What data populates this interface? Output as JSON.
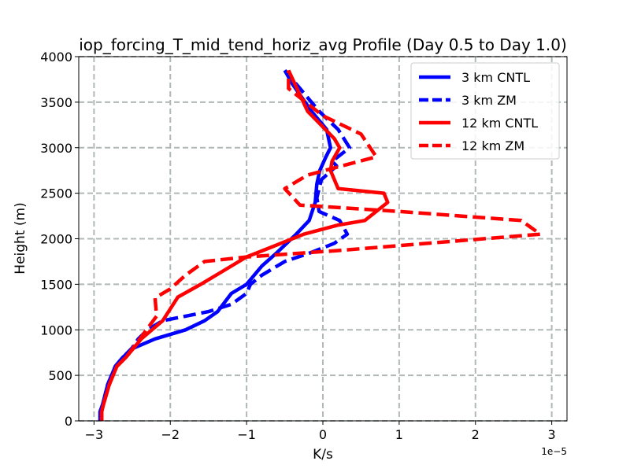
{
  "chart_data": {
    "type": "line",
    "title": "iop_forcing_T_mid_tend_horiz_avg Profile (Day 0.5 to Day 1.0)",
    "xlabel": "K/s",
    "ylabel": "Height (m)",
    "x_offset_label": "1e−5",
    "xlim": [
      -3.2e-05,
      3.2e-05
    ],
    "ylim": [
      0,
      4000
    ],
    "x_ticks": [
      -3e-05,
      -2e-05,
      -1e-05,
      0,
      1e-05,
      2e-05,
      3e-05
    ],
    "x_tick_labels": [
      "−3",
      "−2",
      "−1",
      "0",
      "1",
      "2",
      "3"
    ],
    "y_ticks": [
      0,
      500,
      1000,
      1500,
      2000,
      2500,
      3000,
      3500,
      4000
    ],
    "y_tick_labels": [
      "0",
      "500",
      "1000",
      "1500",
      "2000",
      "2500",
      "3000",
      "3500",
      "4000"
    ],
    "grid": true,
    "legend_position": "top-right",
    "series": [
      {
        "name": "3 km CNTL",
        "color": "#0000ff",
        "dash": "solid",
        "x": [
          -2.92e-05,
          -2.92e-05,
          -2.88e-05,
          -2.82e-05,
          -2.72e-05,
          -2.62e-05,
          -2.48e-05,
          -2.2e-05,
          -1.8e-05,
          -1.55e-05,
          -1.38e-05,
          -1.2e-05,
          -1e-05,
          -8e-06,
          -6e-06,
          -3.5e-06,
          -1.8e-06,
          -1e-06,
          -8e-07,
          -4e-07,
          4e-07,
          1e-06,
          5e-07,
          -1.5e-06,
          -4e-06,
          -5e-06
        ],
        "y": [
          0,
          100,
          200,
          400,
          600,
          700,
          800,
          900,
          1000,
          1100,
          1200,
          1400,
          1500,
          1700,
          1850,
          2050,
          2200,
          2400,
          2600,
          2750,
          2900,
          3000,
          3200,
          3400,
          3700,
          3850
        ]
      },
      {
        "name": "3 km ZM",
        "color": "#0000ff",
        "dash": "dashed",
        "x": [
          -2.92e-05,
          -2.92e-05,
          -2.88e-05,
          -2.82e-05,
          -2.72e-05,
          -2.62e-05,
          -2.5e-05,
          -2.42e-05,
          -2.3e-05,
          -2.1e-05,
          -1.8e-05,
          -1.5e-05,
          -1.2e-05,
          -1e-05,
          -9.5e-06,
          -8e-06,
          -5e-06,
          -1.5e-06,
          1.5e-06,
          3.2e-06,
          2.2e-06,
          -5e-07,
          -8e-07,
          -2e-07,
          1.8e-06,
          1.2e-06,
          3.5e-06,
          2e-06,
          -5e-07,
          -3e-06,
          -5e-06
        ],
        "y": [
          0,
          100,
          200,
          400,
          600,
          700,
          800,
          900,
          1000,
          1100,
          1150,
          1200,
          1280,
          1400,
          1500,
          1600,
          1750,
          1850,
          1950,
          2050,
          2200,
          2300,
          2450,
          2650,
          2800,
          2850,
          3000,
          3200,
          3400,
          3650,
          3850
        ]
      },
      {
        "name": "12 km CNTL",
        "color": "#ff0000",
        "dash": "solid",
        "x": [
          -2.9e-05,
          -2.9e-05,
          -2.87e-05,
          -2.8e-05,
          -2.7e-05,
          -2.58e-05,
          -2.38e-05,
          -2.1e-05,
          -1.9e-05,
          -1.6e-05,
          -1.3e-05,
          -1e-05,
          -7e-06,
          -2.5e-06,
          2e-06,
          5.5e-06,
          8.5e-06,
          8e-06,
          2e-06,
          1e-06,
          1.2e-06,
          2.2e-06,
          1.5e-06,
          -2e-06,
          -4.5e-06
        ],
        "y": [
          0,
          100,
          200,
          400,
          600,
          700,
          900,
          1100,
          1360,
          1500,
          1650,
          1800,
          1900,
          2050,
          2150,
          2200,
          2400,
          2500,
          2550,
          2750,
          2850,
          3000,
          3100,
          3400,
          3850
        ]
      },
      {
        "name": "12 km ZM",
        "color": "#ff0000",
        "dash": "dashed",
        "x": [
          -2.9e-05,
          -2.9e-05,
          -2.87e-05,
          -2.8e-05,
          -2.7e-05,
          -2.58e-05,
          -2.4e-05,
          -2.18e-05,
          -2.2e-05,
          -2e-05,
          -1.8e-05,
          -1.55e-05,
          -1e-05,
          2e-06,
          2.85e-05,
          2.6e-05,
          1e-05,
          -3e-06,
          -5e-06,
          -2e-06,
          7e-06,
          5e-06,
          0.0,
          -4.5e-06,
          -4.5e-06
        ],
        "y": [
          0,
          100,
          200,
          400,
          600,
          700,
          900,
          1150,
          1350,
          1450,
          1600,
          1750,
          1800,
          1870,
          2050,
          2200,
          2300,
          2370,
          2550,
          2700,
          2900,
          3150,
          3350,
          3650,
          3850
        ]
      }
    ]
  }
}
